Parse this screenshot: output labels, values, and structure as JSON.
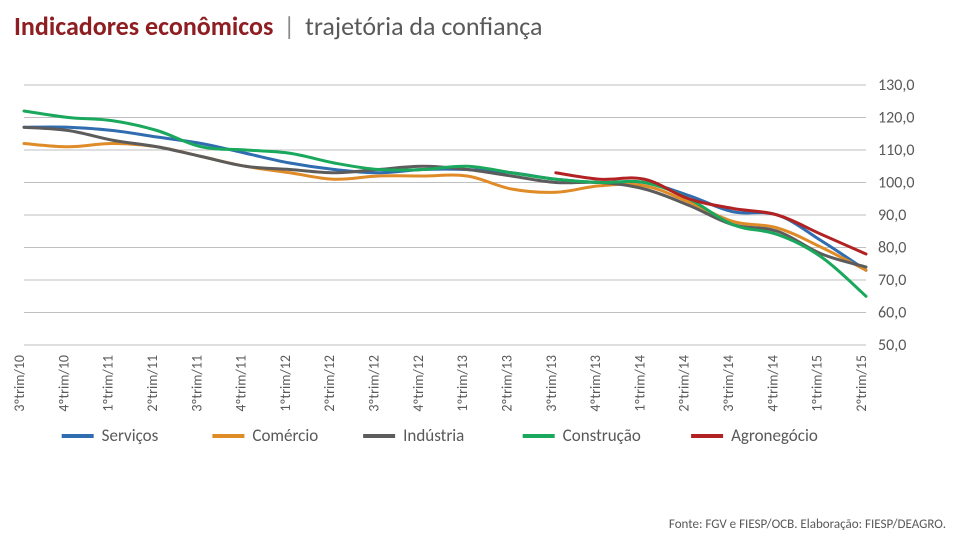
{
  "title": {
    "part1": "Indicadores econômicos",
    "separator": "|",
    "part2": "trajetória da confiança",
    "color1": "#8f1e22",
    "color2": "#595959",
    "fontsize": 26
  },
  "chart": {
    "type": "line",
    "background_color": "#ffffff",
    "grid_color": "#bfbfbf",
    "axis_font_color": "#595959",
    "axis_fontsize": 16,
    "legend_fontsize": 17,
    "xlabel_fontsize": 14,
    "ylim": [
      50,
      130
    ],
    "ytick_step": 10,
    "yticks": [
      "50,0",
      "60,0",
      "70,0",
      "80,0",
      "90,0",
      "100,0",
      "110,0",
      "120,0",
      "130,0"
    ],
    "categories": [
      "3ºtrim/10",
      "4ºtrim/10",
      "1ºtrim/11",
      "2ºtrim/11",
      "3ºtrim/11",
      "4ºtrim/11",
      "1ºtrim/12",
      "2ºtrim/12",
      "3ºtrim/12",
      "4ºtrim/12",
      "1ºtrim/13",
      "2ºtrim/13",
      "3ºtrim/13",
      "4ºtrim/13",
      "1ºtrim/14",
      "2ºtrim/14",
      "3ºtrim/14",
      "4ºtrim/14",
      "1ºtrim/15",
      "2ºtrim/15"
    ],
    "line_width": 3,
    "series": [
      {
        "name": "Serviços",
        "color": "#2f6db0",
        "values": [
          117,
          117,
          116,
          114,
          112,
          109,
          106,
          104,
          103,
          104,
          104,
          103,
          101,
          100,
          100,
          96,
          91,
          90,
          82,
          73
        ]
      },
      {
        "name": "Comércio",
        "color": "#de8b28",
        "values": [
          112,
          111,
          112,
          111,
          108,
          105,
          103,
          101,
          102,
          102,
          102,
          98,
          97,
          99,
          99,
          94,
          88,
          86,
          80,
          73
        ]
      },
      {
        "name": "Indústria",
        "color": "#5c5c5c",
        "values": [
          117,
          116,
          113,
          111,
          108,
          105,
          104,
          103,
          104,
          105,
          104,
          102,
          100,
          100,
          98,
          93,
          87,
          85,
          78,
          74
        ]
      },
      {
        "name": "Construção",
        "color": "#1aa85d",
        "values": [
          122,
          120,
          119,
          116,
          111,
          110,
          109,
          106,
          104,
          104,
          105,
          103,
          101,
          100,
          100,
          95,
          87,
          84,
          77,
          65
        ]
      },
      {
        "name": "Agronegócio",
        "color": "#b22222",
        "values": [
          null,
          null,
          null,
          null,
          null,
          null,
          null,
          null,
          null,
          null,
          null,
          null,
          103,
          101,
          101,
          95,
          92,
          90,
          84,
          78
        ]
      }
    ]
  },
  "legend_order": [
    "Serviços",
    "Comércio",
    "Indústria",
    "Construção",
    "Agronegócio"
  ],
  "source": "Fonte: FGV e FIESP/OCB. Elaboração: FIESP/DEAGRO."
}
